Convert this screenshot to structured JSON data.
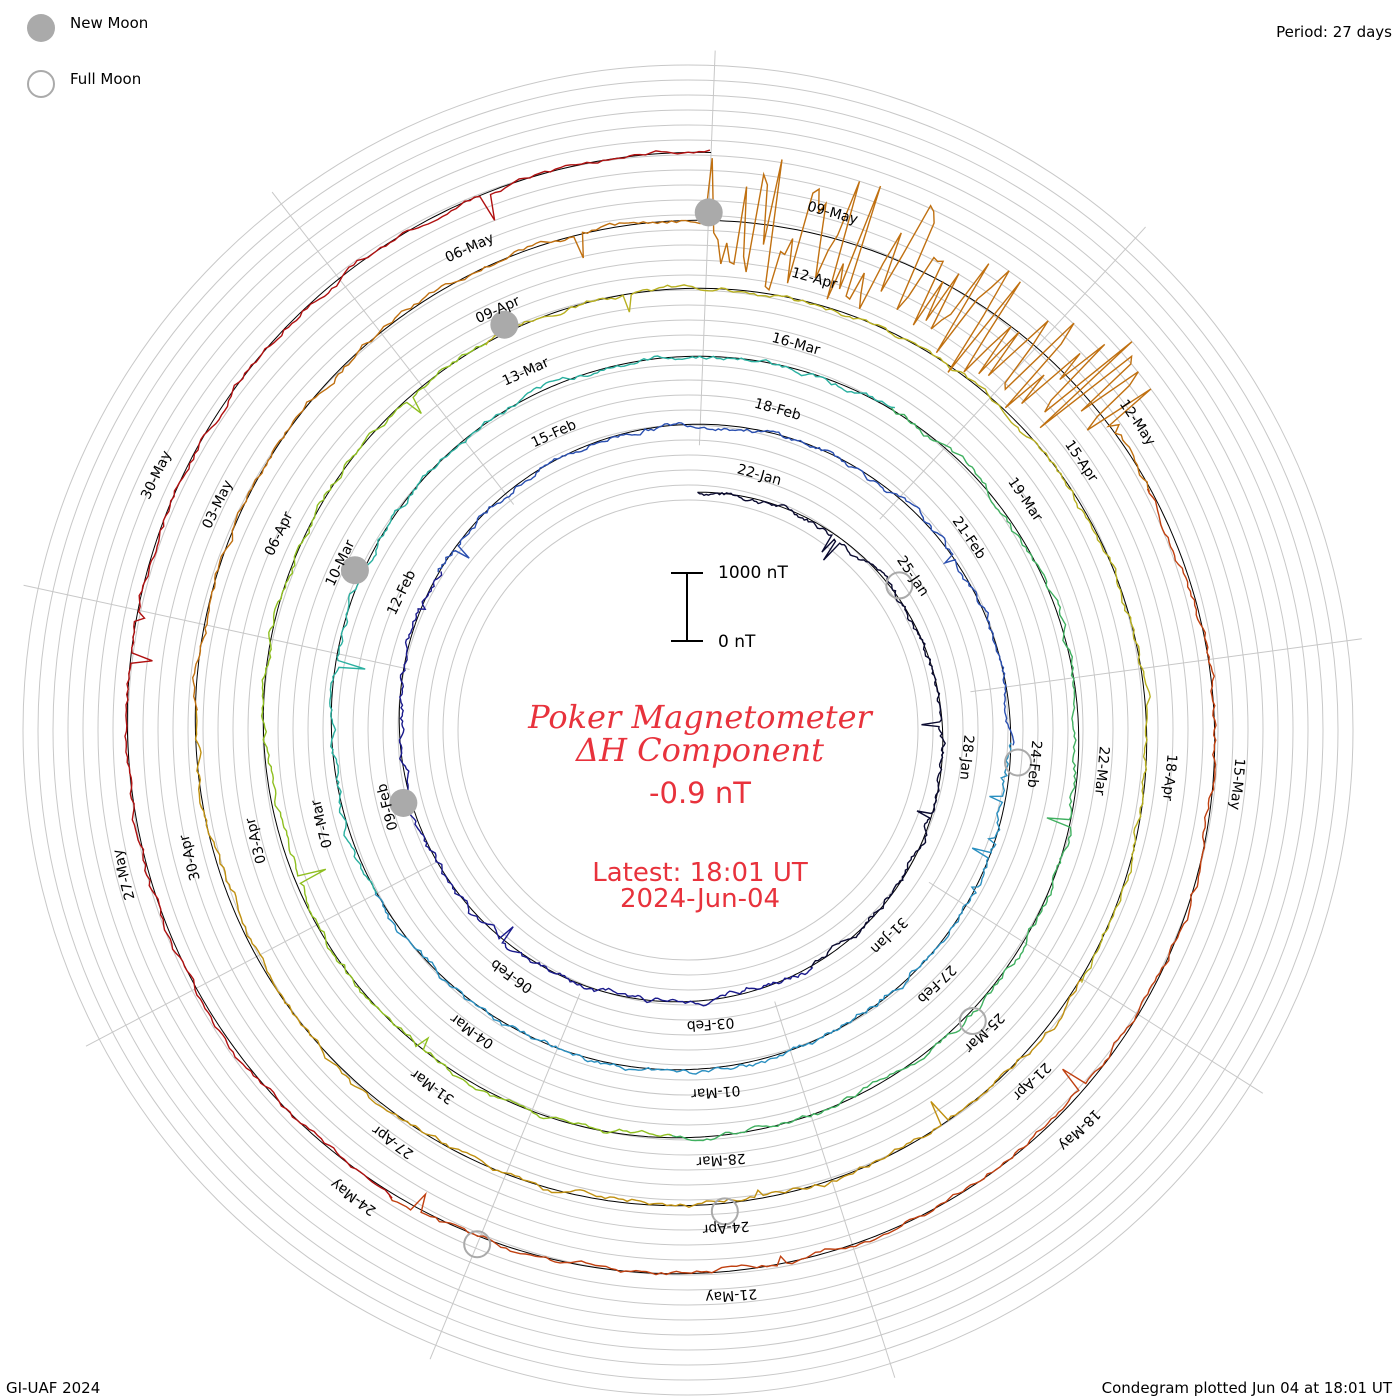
{
  "legend": {
    "new_moon_label": "New Moon",
    "full_moon_label": "Full Moon",
    "new_moon_color": "#aaaaaa",
    "full_moon_color": "#aaaaaa"
  },
  "period_label": "Period: 27 days",
  "footer": {
    "left": "GI-UAF 2024",
    "right": "Condegram plotted Jun 04 at 18:01 UT"
  },
  "title": {
    "line1": "Poker Magnetometer",
    "line2": "ΔH Component",
    "value": "-0.9 nT",
    "latest": "Latest: 18:01 UT",
    "date": "2024-Jun-04",
    "color": "#e8323c"
  },
  "scale_bar": {
    "top_label": "1000 nT",
    "bottom_label": "0 nT"
  },
  "chart_data": {
    "type": "line",
    "subtype": "condegram-spiral",
    "period_days": 27,
    "scale_nT": [
      0,
      1000
    ],
    "date_labels": [
      "22-Jan",
      "25-Jan",
      "28-Jan",
      "31-Jan",
      "03-Feb",
      "06-Feb",
      "09-Feb",
      "12-Feb",
      "15-Feb",
      "18-Feb",
      "21-Feb",
      "24-Feb",
      "27-Feb",
      "01-Mar",
      "04-Mar",
      "07-Mar",
      "10-Mar",
      "13-Mar",
      "16-Mar",
      "19-Mar",
      "22-Mar",
      "25-Mar",
      "28-Mar",
      "31-Mar",
      "03-Apr",
      "06-Apr",
      "09-Apr",
      "12-Apr",
      "15-Apr",
      "18-Apr",
      "21-Apr",
      "24-Apr",
      "27-Apr",
      "30-Apr",
      "03-May",
      "06-May",
      "09-May",
      "12-May",
      "15-May",
      "18-May",
      "21-May",
      "24-May",
      "27-May",
      "30-May"
    ],
    "series_colors": [
      "#0a0a30",
      "#1a1a8c",
      "#2a4fb0",
      "#2a8fc0",
      "#2ab0a0",
      "#40b060",
      "#8fbf20",
      "#b8b020",
      "#c09010",
      "#c07010",
      "#c04010",
      "#b01010"
    ],
    "new_moon_dates": [
      "09-Feb",
      "10-Mar",
      "09-Apr",
      "08-May"
    ],
    "full_moon_dates": [
      "25-Jan",
      "24-Feb",
      "25-Mar",
      "24-Apr",
      "23-May"
    ],
    "disturbance_dates": [
      "10-May",
      "11-May",
      "12-May"
    ]
  }
}
